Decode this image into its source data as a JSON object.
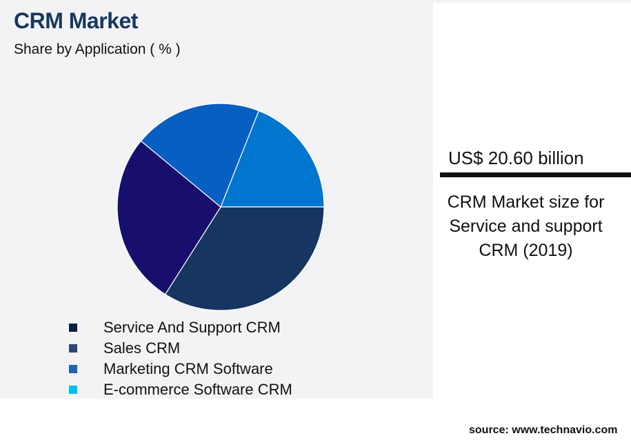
{
  "header": {
    "title": "CRM Market",
    "subtitle": "Share by Application ( % )"
  },
  "chart_data": {
    "type": "pie",
    "title": "CRM Market",
    "subtitle": "Share by Application ( % )",
    "categories": [
      "Service And Support CRM",
      "Sales CRM",
      "Marketing CRM Software",
      "E-commerce Software CRM"
    ],
    "slice_categories": [
      "E-commerce Software CRM",
      "Service And Support CRM",
      "Sales CRM",
      "Marketing CRM Software"
    ],
    "values": [
      19,
      34,
      27,
      20
    ],
    "slice_colors": [
      "#0076ce",
      "#163560",
      "#170e6e",
      "#075fc2"
    ],
    "legend_placement": "bottom"
  },
  "legend": {
    "items": [
      {
        "label": "Service And Support CRM",
        "color": "#0b1d44"
      },
      {
        "label": "Sales CRM",
        "color": "#2a4776"
      },
      {
        "label": "Marketing CRM Software",
        "color": "#1f63b4"
      },
      {
        "label": "E-commerce Software CRM",
        "color": "#00c0e8"
      }
    ]
  },
  "highlight": {
    "value": "US$ 20.60 billion",
    "description": "CRM Market size for Service and support CRM (2019)"
  },
  "footer": {
    "source": "source: www.technavio.com"
  }
}
